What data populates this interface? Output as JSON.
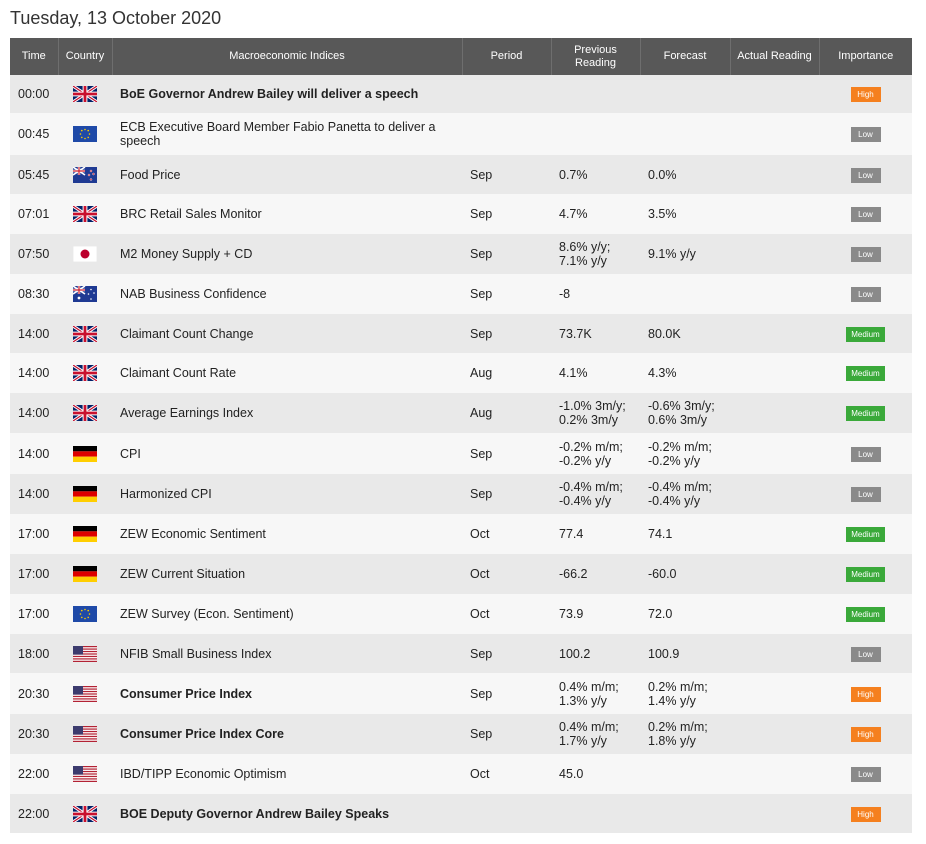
{
  "date": "Tuesday, 13 October 2020",
  "columns": {
    "time": "Time",
    "country": "Country",
    "indices": "Macroeconomic Indices",
    "period": "Period",
    "previous": "Previous Reading",
    "forecast": "Forecast",
    "actual": "Actual Reading",
    "importance": "Importance"
  },
  "rows": [
    {
      "time": "00:00",
      "country": "uk-flag-icon",
      "name": "BoE Governor Andrew Bailey will deliver a speech",
      "bold": true,
      "period": "",
      "previous": "",
      "forecast": "",
      "actual": "",
      "importance": "High"
    },
    {
      "time": "00:45",
      "country": "eu-flag-icon",
      "name": "ECB Executive Board Member Fabio Panetta to deliver a speech",
      "bold": false,
      "period": "",
      "previous": "",
      "forecast": "",
      "actual": "",
      "importance": "Low"
    },
    {
      "time": "05:45",
      "country": "nz-flag-icon",
      "name": "Food Price",
      "bold": false,
      "period": "Sep",
      "previous": "0.7%",
      "forecast": "0.0%",
      "actual": "",
      "importance": "Low"
    },
    {
      "time": "07:01",
      "country": "uk-flag-icon",
      "name": "BRC Retail Sales Monitor",
      "bold": false,
      "period": "Sep",
      "previous": "4.7%",
      "forecast": "3.5%",
      "actual": "",
      "importance": "Low"
    },
    {
      "time": "07:50",
      "country": "jp-flag-icon",
      "name": "M2 Money Supply + CD",
      "bold": false,
      "period": "Sep",
      "previous": "8.6% y/y;\n7.1% y/y",
      "forecast": "9.1% y/y",
      "actual": "",
      "importance": "Low"
    },
    {
      "time": "08:30",
      "country": "au-flag-icon",
      "name": "NAB Business Confidence",
      "bold": false,
      "period": "Sep",
      "previous": "-8",
      "forecast": "",
      "actual": "",
      "importance": "Low"
    },
    {
      "time": "14:00",
      "country": "uk-flag-icon",
      "name": "Claimant Count Change",
      "bold": false,
      "period": "Sep",
      "previous": "73.7K",
      "forecast": "80.0K",
      "actual": "",
      "importance": "Medium"
    },
    {
      "time": "14:00",
      "country": "uk-flag-icon",
      "name": "Claimant Count Rate",
      "bold": false,
      "period": "Aug",
      "previous": "4.1%",
      "forecast": "4.3%",
      "actual": "",
      "importance": "Medium"
    },
    {
      "time": "14:00",
      "country": "uk-flag-icon",
      "name": "Average Earnings Index",
      "bold": false,
      "period": "Aug",
      "previous": "-1.0% 3m/y;\n0.2% 3m/y",
      "forecast": "-0.6% 3m/y;\n0.6% 3m/y",
      "actual": "",
      "importance": "Medium"
    },
    {
      "time": "14:00",
      "country": "de-flag-icon",
      "name": "CPI",
      "bold": false,
      "period": "Sep",
      "previous": "-0.2% m/m;\n-0.2% y/y",
      "forecast": "-0.2% m/m;\n-0.2% y/y",
      "actual": "",
      "importance": "Low"
    },
    {
      "time": "14:00",
      "country": "de-flag-icon",
      "name": "Harmonized CPI",
      "bold": false,
      "period": "Sep",
      "previous": "-0.4% m/m;\n-0.4% y/y",
      "forecast": "-0.4% m/m;\n-0.4% y/y",
      "actual": "",
      "importance": "Low"
    },
    {
      "time": "17:00",
      "country": "de-flag-icon",
      "name": "ZEW Economic Sentiment",
      "bold": false,
      "period": "Oct",
      "previous": "77.4",
      "forecast": "74.1",
      "actual": "",
      "importance": "Medium"
    },
    {
      "time": "17:00",
      "country": "de-flag-icon",
      "name": "ZEW Current Situation",
      "bold": false,
      "period": "Oct",
      "previous": "-66.2",
      "forecast": "-60.0",
      "actual": "",
      "importance": "Medium"
    },
    {
      "time": "17:00",
      "country": "eu-flag-icon",
      "name": "ZEW Survey (Econ. Sentiment)",
      "bold": false,
      "period": "Oct",
      "previous": "73.9",
      "forecast": "72.0",
      "actual": "",
      "importance": "Medium"
    },
    {
      "time": "18:00",
      "country": "us-flag-icon",
      "name": "NFIB Small Business Index",
      "bold": false,
      "period": "Sep",
      "previous": "100.2",
      "forecast": "100.9",
      "actual": "",
      "importance": "Low"
    },
    {
      "time": "20:30",
      "country": "us-flag-icon",
      "name": "Consumer Price Index",
      "bold": true,
      "period": "Sep",
      "previous": "0.4% m/m;\n1.3% y/y",
      "forecast": "0.2% m/m;\n1.4% y/y",
      "actual": "",
      "importance": "High"
    },
    {
      "time": "20:30",
      "country": "us-flag-icon",
      "name": "Consumer Price Index Core",
      "bold": true,
      "period": "Sep",
      "previous": "0.4% m/m;\n1.7% y/y",
      "forecast": "0.2% m/m;\n1.8% y/y",
      "actual": "",
      "importance": "High"
    },
    {
      "time": "22:00",
      "country": "us-flag-icon",
      "name": "IBD/TIPP Economic Optimism",
      "bold": false,
      "period": "Oct",
      "previous": "45.0",
      "forecast": "",
      "actual": "",
      "importance": "Low"
    },
    {
      "time": "22:00",
      "country": "uk-flag-icon",
      "name": "BOE Deputy Governor Andrew Bailey Speaks",
      "bold": true,
      "period": "",
      "previous": "",
      "forecast": "",
      "actual": "",
      "importance": "High"
    }
  ],
  "colors": {
    "header_bg": "#585858",
    "high": "#f5801f",
    "medium": "#3aa93a",
    "low": "#8a8a8a"
  }
}
